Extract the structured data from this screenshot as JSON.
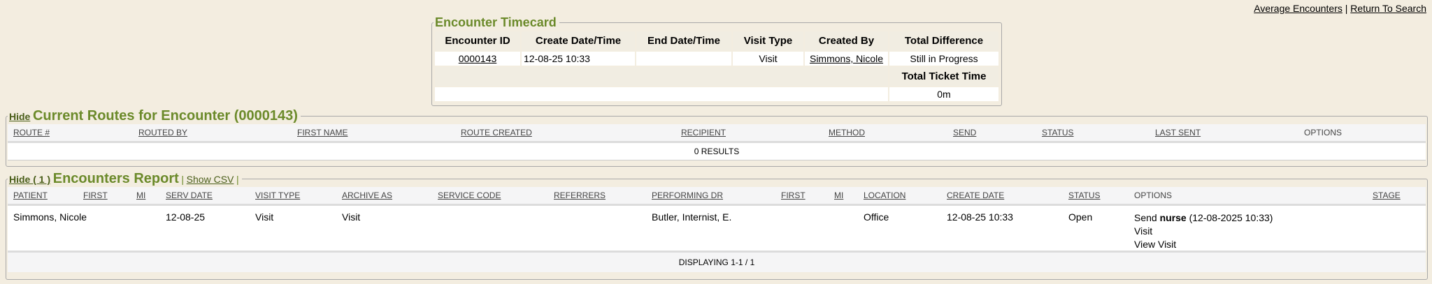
{
  "top_links": {
    "average": "Average Encounters",
    "sep": "|",
    "return": "Return To Search"
  },
  "timecard": {
    "title": "Encounter Timecard",
    "headers": [
      "Encounter ID",
      "Create Date/Time",
      "End Date/Time",
      "Visit Type",
      "Created By",
      "Total Difference"
    ],
    "row": {
      "id": "0000143",
      "create": "12-08-25 10:33",
      "end": "",
      "visit_type": "Visit",
      "created_by": "Simmons, Nicole",
      "total_difference": "Still in Progress"
    },
    "total_ticket_label": "Total Ticket Time",
    "total_ticket_value": "0m"
  },
  "routes": {
    "hide": "Hide",
    "title": "Current Routes for Encounter (0000143)",
    "headers": [
      "ROUTE #",
      "ROUTED BY",
      "FIRST NAME",
      "ROUTE CREATED",
      "RECIPIENT",
      "METHOD",
      "SEND",
      "STATUS",
      "LAST SENT",
      "OPTIONS"
    ],
    "results": "0 RESULTS"
  },
  "encounters": {
    "hide": "Hide ( 1 )",
    "title": "Encounters Report",
    "sep": "|",
    "show_csv": "Show CSV",
    "headers": [
      "PATIENT",
      "FIRST",
      "MI",
      "SERV DATE",
      "VISIT TYPE",
      "ARCHIVE AS",
      "SERVICE CODE",
      "REFERRERS",
      "PERFORMING DR",
      "FIRST",
      "MI",
      "LOCATION",
      "CREATE DATE",
      "STATUS",
      "OPTIONS",
      "STAGE"
    ],
    "row": {
      "patient": "Simmons, Nicole",
      "first": "",
      "mi": "",
      "serv_date": "12-08-25",
      "visit_type": "Visit",
      "archive_as": "Visit",
      "service_code": "",
      "referrers": "",
      "performing_dr": "Butler, Internist, E.",
      "dr_first": "",
      "dr_mi": "",
      "location": "Office",
      "create_date": "12-08-25 10:33",
      "status": "Open",
      "options": {
        "send_prefix": "Send",
        "send_role": "nurse",
        "send_time": "(12-08-2025 10:33)",
        "visit": "Visit",
        "view_visit": "View Visit"
      },
      "stage": ""
    },
    "footer": "DISPLAYING 1-1 / 1"
  },
  "colors": {
    "legend_green": "#6b8a2a",
    "background": "#f3ede0"
  }
}
